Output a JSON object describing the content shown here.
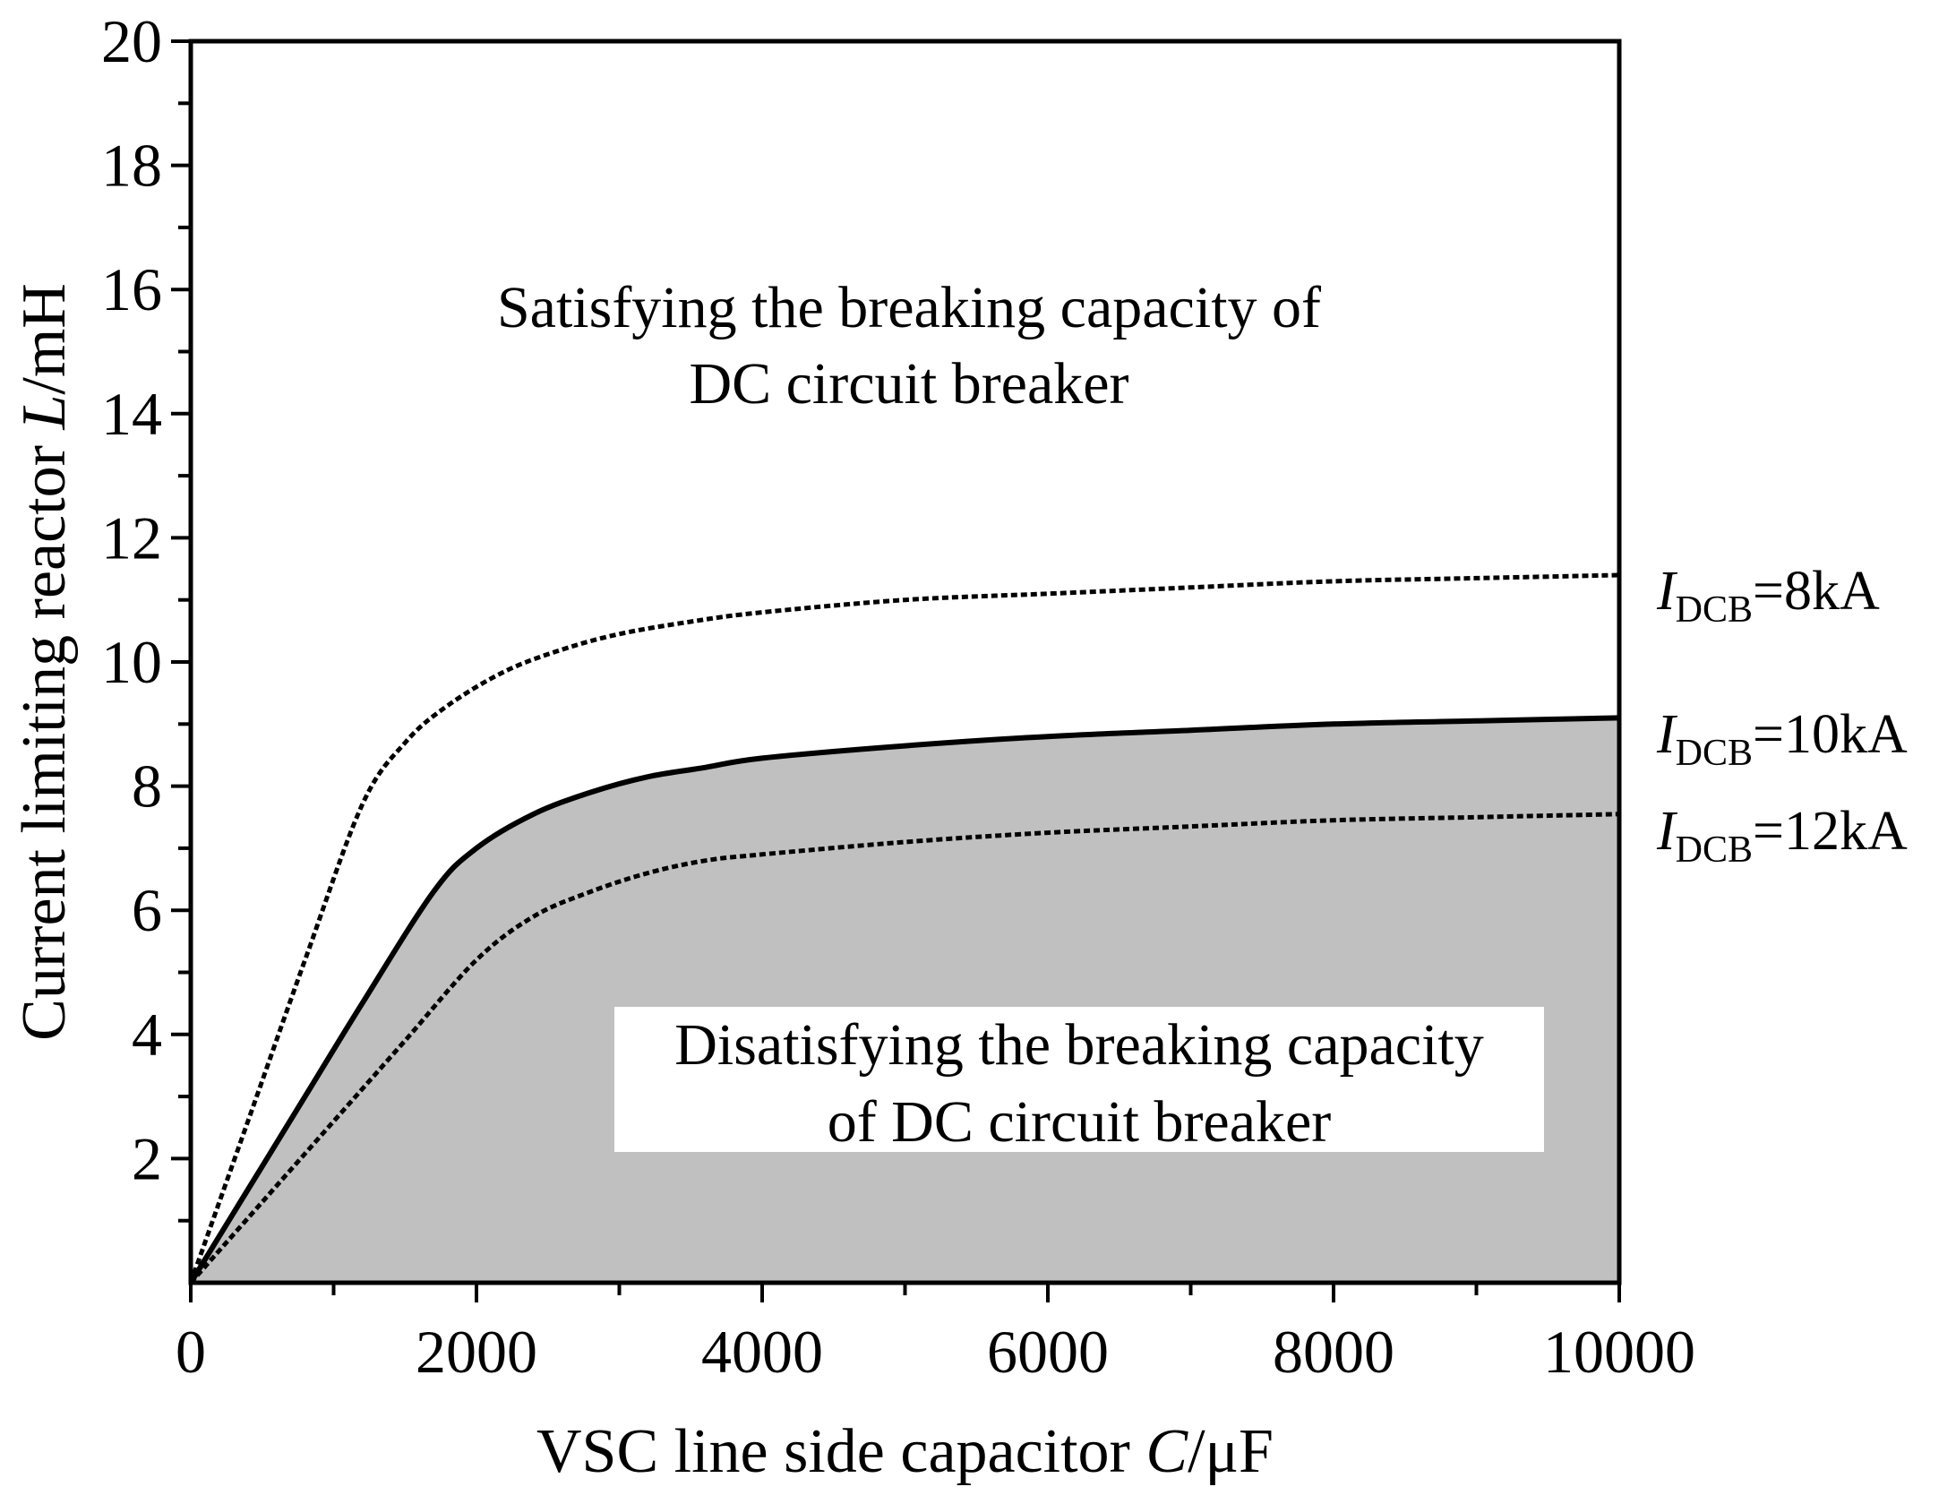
{
  "chart_data": {
    "type": "area",
    "title": "",
    "xlabel": {
      "text": "VSC line side capacitor ",
      "var": "C",
      "unit": "/μF"
    },
    "ylabel": {
      "text": "Current limiting reactor ",
      "var": "L",
      "unit": "/mH"
    },
    "xlim": [
      0,
      10000
    ],
    "ylim": [
      0,
      20
    ],
    "xticks": [
      0,
      2000,
      4000,
      6000,
      8000,
      10000
    ],
    "yticks": [
      2,
      4,
      6,
      8,
      10,
      12,
      14,
      16,
      18,
      20
    ],
    "grid": false,
    "shaded_region": {
      "under_series": "I_DCB=10kA",
      "color": "#c0c0c0"
    },
    "region_labels": {
      "upper": [
        "Satisfying the breaking capacity of",
        "DC circuit breaker"
      ],
      "lower": [
        "Disatisfying the breaking capacity",
        "of DC circuit breaker"
      ]
    },
    "series": [
      {
        "name": "I_DCB=8kA",
        "label": {
          "var": "I",
          "sub": "DCB",
          "value": "=8kA"
        },
        "style": "dashed",
        "x": [
          0,
          400,
          800,
          1200,
          1500,
          1800,
          2200,
          2600,
          3000,
          3500,
          4000,
          5000,
          6000,
          7000,
          8000,
          9000,
          10000
        ],
        "y": [
          0,
          2.6,
          5.2,
          7.7,
          8.7,
          9.3,
          9.85,
          10.2,
          10.45,
          10.65,
          10.8,
          11.0,
          11.1,
          11.2,
          11.3,
          11.35,
          11.4
        ]
      },
      {
        "name": "I_DCB=10kA",
        "label": {
          "var": "I",
          "sub": "DCB",
          "value": "=10kA"
        },
        "style": "solid",
        "x": [
          0,
          400,
          800,
          1200,
          1700,
          2000,
          2400,
          2800,
          3200,
          3600,
          4000,
          5000,
          6000,
          7000,
          8000,
          9000,
          10000
        ],
        "y": [
          0,
          1.5,
          3.0,
          4.5,
          6.3,
          7.0,
          7.55,
          7.9,
          8.15,
          8.3,
          8.45,
          8.65,
          8.8,
          8.9,
          9.0,
          9.05,
          9.1
        ]
      },
      {
        "name": "I_DCB=12kA",
        "label": {
          "var": "I",
          "sub": "DCB",
          "value": "=12kA"
        },
        "style": "dashed",
        "x": [
          0,
          500,
          1000,
          1500,
          2000,
          2400,
          2800,
          3200,
          3600,
          4000,
          5000,
          6000,
          7000,
          8000,
          9000,
          10000
        ],
        "y": [
          0,
          1.3,
          2.6,
          3.9,
          5.2,
          5.9,
          6.3,
          6.6,
          6.8,
          6.9,
          7.1,
          7.25,
          7.35,
          7.45,
          7.5,
          7.55
        ]
      }
    ]
  }
}
